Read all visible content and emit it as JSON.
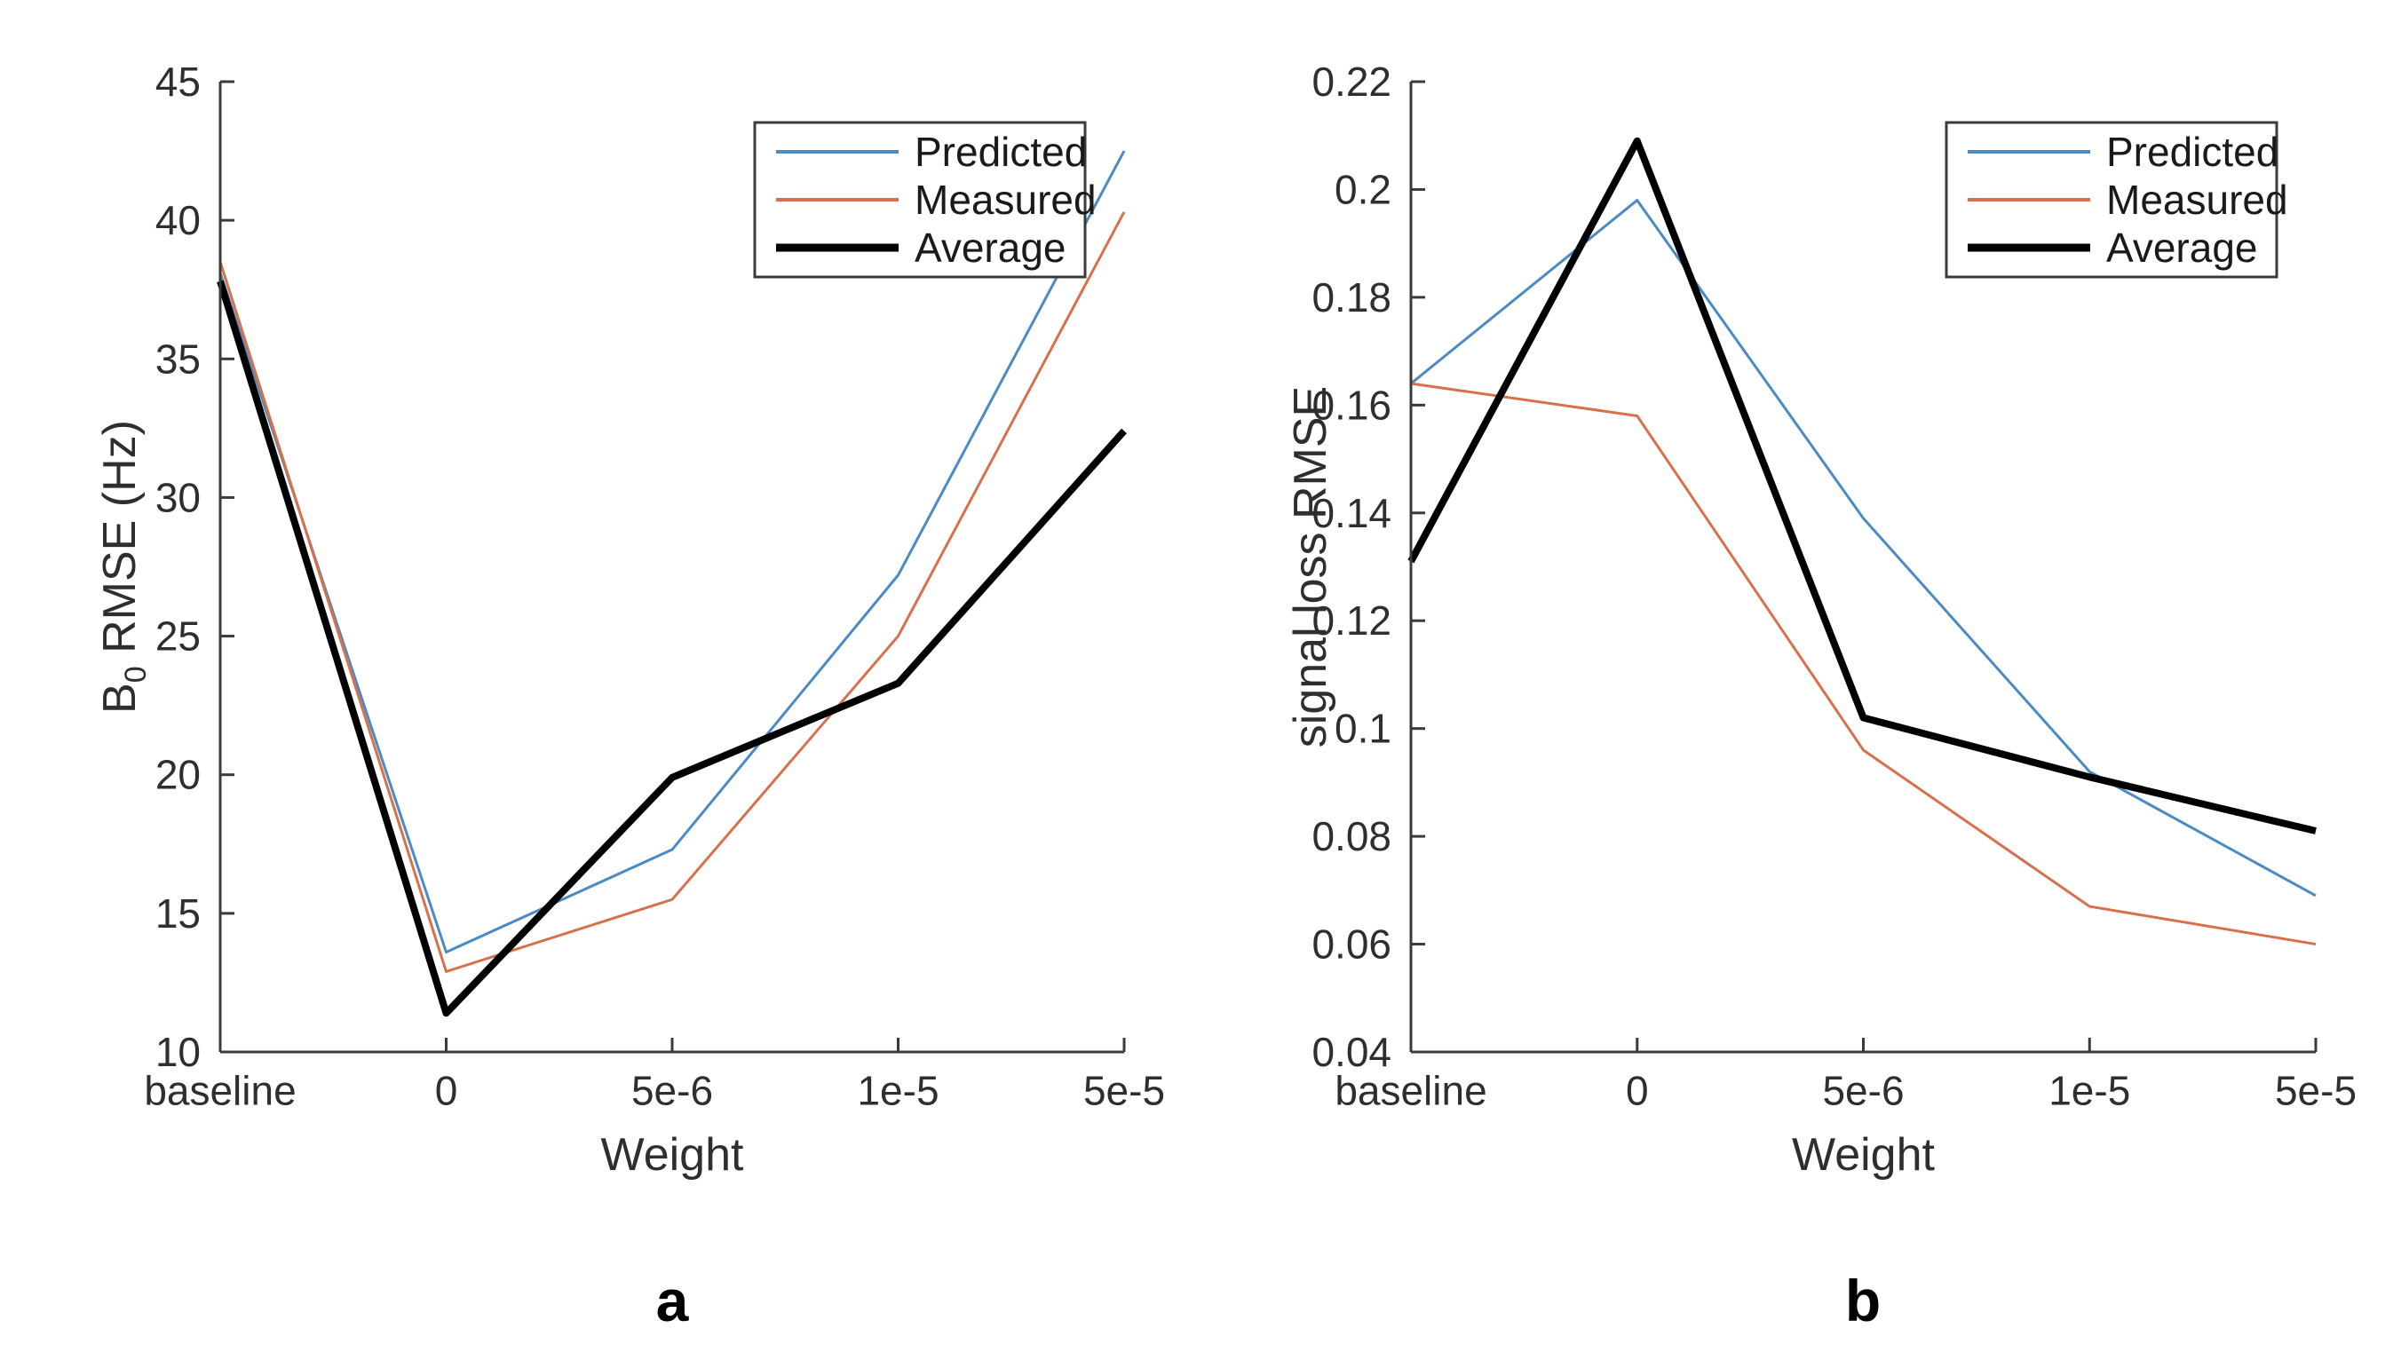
{
  "figure": {
    "background": "#ffffff",
    "axis_color": "#3a3a3a",
    "text_color": "#2e2e2e"
  },
  "panels": [
    {
      "tag": "a",
      "ylabel_parts": [
        {
          "t": "B"
        },
        {
          "t": "0",
          "sub": true
        },
        {
          "t": " RMSE (Hz)"
        }
      ]
    },
    {
      "tag": "b",
      "ylabel_parts": [
        {
          "t": "signal loss RMSE"
        }
      ]
    }
  ],
  "chart_data": [
    {
      "type": "line",
      "title": "",
      "xlabel": "Weight",
      "ylabel": "B_0 RMSE (Hz)",
      "categories": [
        "baseline",
        "0",
        "5e-6",
        "1e-5",
        "5e-5"
      ],
      "series": [
        {
          "name": "Predicted",
          "color": "#4a8bc5",
          "width": 3,
          "values": [
            38.1,
            13.6,
            17.3,
            27.2,
            42.5
          ]
        },
        {
          "name": "Measured",
          "color": "#d7714b",
          "width": 3,
          "values": [
            38.5,
            12.9,
            15.5,
            25.0,
            40.3
          ]
        },
        {
          "name": "Average",
          "color": "#000000",
          "width": 8,
          "values": [
            37.8,
            11.4,
            19.9,
            23.3,
            32.4
          ]
        }
      ],
      "ylim": [
        10,
        45
      ],
      "yticks": [
        "10",
        "15",
        "20",
        "25",
        "30",
        "35",
        "40",
        "45"
      ],
      "grid": false,
      "legend_position": "upper right inside",
      "legend_entries": [
        "Predicted",
        "Measured",
        "Average"
      ]
    },
    {
      "type": "line",
      "title": "",
      "xlabel": "Weight",
      "ylabel": "signal loss RMSE",
      "categories": [
        "baseline",
        "0",
        "5e-6",
        "1e-5",
        "5e-5"
      ],
      "series": [
        {
          "name": "Predicted",
          "color": "#4a8bc5",
          "width": 3,
          "values": [
            0.164,
            0.198,
            0.139,
            0.092,
            0.069
          ]
        },
        {
          "name": "Measured",
          "color": "#d7714b",
          "width": 3,
          "values": [
            0.164,
            0.158,
            0.096,
            0.067,
            0.06
          ]
        },
        {
          "name": "Average",
          "color": "#000000",
          "width": 8,
          "values": [
            0.131,
            0.209,
            0.102,
            0.091,
            0.081
          ]
        }
      ],
      "ylim": [
        0.04,
        0.22
      ],
      "yticks": [
        "0.04",
        "0.06",
        "0.08",
        "0.1",
        "0.12",
        "0.14",
        "0.16",
        "0.18",
        "0.2",
        "0.22"
      ],
      "grid": false,
      "legend_position": "upper right inside",
      "legend_entries": [
        "Predicted",
        "Measured",
        "Average"
      ]
    }
  ]
}
